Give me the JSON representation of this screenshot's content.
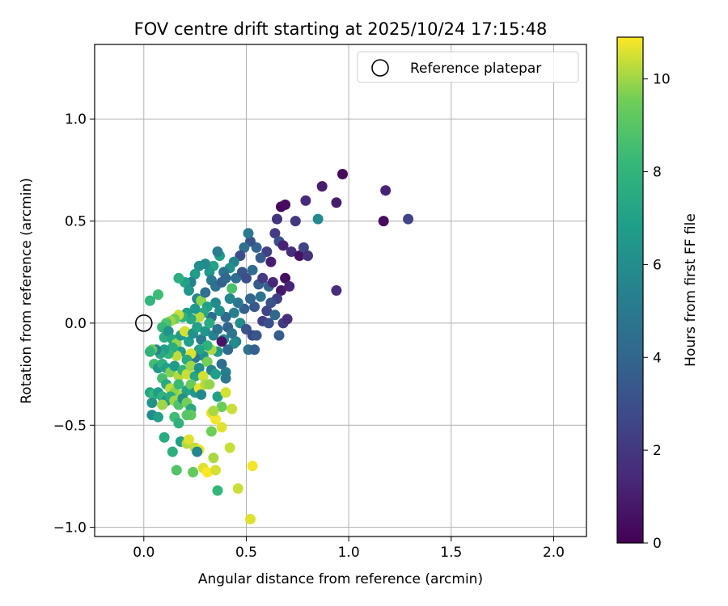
{
  "chart_data": {
    "type": "scatter",
    "title": "FOV centre drift starting at 2025/10/24 17:15:48",
    "xlabel": "Angular distance from reference (arcmin)",
    "ylabel": "Rotation from reference (arcmin)",
    "xlim": [
      -0.24,
      2.16
    ],
    "ylim": [
      -1.045,
      1.365
    ],
    "xticks": [
      0.0,
      0.5,
      1.0,
      1.5,
      2.0
    ],
    "xtick_labels": [
      "0.0",
      "0.5",
      "1.0",
      "1.5",
      "2.0"
    ],
    "yticks": [
      -1.0,
      -0.5,
      0.0,
      0.5,
      1.0
    ],
    "ytick_labels": [
      "−1.0",
      "−0.5",
      "0.0",
      "0.5",
      "1.0"
    ],
    "grid": true,
    "legend": {
      "position": "top-right",
      "entries": [
        {
          "label": "Reference platepar",
          "marker": "open-circle",
          "color": "#000000"
        }
      ]
    },
    "reference_point": {
      "x": 0.0,
      "y": 0.0
    },
    "colorbar": {
      "label": "Hours from first FF file",
      "colormap": "viridis",
      "range": [
        0,
        10.9
      ],
      "ticks": [
        0,
        2,
        4,
        6,
        8,
        10
      ],
      "tick_labels": [
        "0",
        "2",
        "4",
        "6",
        "8",
        "10"
      ]
    },
    "points": [
      {
        "x": 0.97,
        "y": 0.73,
        "c": 0.3
      },
      {
        "x": 0.87,
        "y": 0.67,
        "c": 1.0
      },
      {
        "x": 1.18,
        "y": 0.65,
        "c": 1.2
      },
      {
        "x": 0.79,
        "y": 0.6,
        "c": 1.5
      },
      {
        "x": 0.94,
        "y": 0.59,
        "c": 1.0
      },
      {
        "x": 0.67,
        "y": 0.57,
        "c": 0.2
      },
      {
        "x": 0.69,
        "y": 0.58,
        "c": 0.4
      },
      {
        "x": 1.17,
        "y": 0.5,
        "c": 0.4
      },
      {
        "x": 1.29,
        "y": 0.51,
        "c": 2.5
      },
      {
        "x": 0.85,
        "y": 0.51,
        "c": 5.8
      },
      {
        "x": 0.74,
        "y": 0.5,
        "c": 2.0
      },
      {
        "x": 0.65,
        "y": 0.51,
        "c": 1.8
      },
      {
        "x": 0.64,
        "y": 0.44,
        "c": 2.2
      },
      {
        "x": 0.66,
        "y": 0.4,
        "c": 3.0
      },
      {
        "x": 0.68,
        "y": 0.38,
        "c": 1.2
      },
      {
        "x": 0.72,
        "y": 0.35,
        "c": 1.6
      },
      {
        "x": 0.76,
        "y": 0.33,
        "c": 0.6
      },
      {
        "x": 0.78,
        "y": 0.37,
        "c": 2.6
      },
      {
        "x": 0.8,
        "y": 0.33,
        "c": 1.8
      },
      {
        "x": 0.62,
        "y": 0.3,
        "c": 1.0
      },
      {
        "x": 0.6,
        "y": 0.35,
        "c": 2.4
      },
      {
        "x": 0.57,
        "y": 0.32,
        "c": 3.5
      },
      {
        "x": 0.55,
        "y": 0.37,
        "c": 4.0
      },
      {
        "x": 0.52,
        "y": 0.4,
        "c": 3.2
      },
      {
        "x": 0.51,
        "y": 0.44,
        "c": 5.0
      },
      {
        "x": 0.49,
        "y": 0.37,
        "c": 4.5
      },
      {
        "x": 0.47,
        "y": 0.33,
        "c": 2.8
      },
      {
        "x": 0.44,
        "y": 0.3,
        "c": 5.5
      },
      {
        "x": 0.42,
        "y": 0.27,
        "c": 6.2
      },
      {
        "x": 0.39,
        "y": 0.25,
        "c": 4.8
      },
      {
        "x": 0.37,
        "y": 0.33,
        "c": 6.8
      },
      {
        "x": 0.36,
        "y": 0.35,
        "c": 5.2
      },
      {
        "x": 0.34,
        "y": 0.28,
        "c": 7.1
      },
      {
        "x": 0.32,
        "y": 0.25,
        "c": 6.5
      },
      {
        "x": 0.3,
        "y": 0.29,
        "c": 5.9
      },
      {
        "x": 0.27,
        "y": 0.28,
        "c": 6.0
      },
      {
        "x": 0.25,
        "y": 0.24,
        "c": 6.7
      },
      {
        "x": 0.23,
        "y": 0.2,
        "c": 5.4
      },
      {
        "x": 0.2,
        "y": 0.2,
        "c": 7.0
      },
      {
        "x": 0.17,
        "y": 0.22,
        "c": 7.7
      },
      {
        "x": 0.22,
        "y": 0.16,
        "c": 6.4
      },
      {
        "x": 0.26,
        "y": 0.12,
        "c": 5.7
      },
      {
        "x": 0.28,
        "y": 0.11,
        "c": 9.8
      },
      {
        "x": 0.3,
        "y": 0.15,
        "c": 4.5
      },
      {
        "x": 0.33,
        "y": 0.21,
        "c": 5.0
      },
      {
        "x": 0.35,
        "y": 0.18,
        "c": 4.6
      },
      {
        "x": 0.38,
        "y": 0.2,
        "c": 3.7
      },
      {
        "x": 0.4,
        "y": 0.22,
        "c": 4.1
      },
      {
        "x": 0.43,
        "y": 0.17,
        "c": 8.7
      },
      {
        "x": 0.45,
        "y": 0.22,
        "c": 4.4
      },
      {
        "x": 0.48,
        "y": 0.25,
        "c": 3.3
      },
      {
        "x": 0.5,
        "y": 0.22,
        "c": 2.9
      },
      {
        "x": 0.53,
        "y": 0.26,
        "c": 4.3
      },
      {
        "x": 0.56,
        "y": 0.19,
        "c": 3.6
      },
      {
        "x": 0.58,
        "y": 0.22,
        "c": 2.1
      },
      {
        "x": 0.61,
        "y": 0.18,
        "c": 3.9
      },
      {
        "x": 0.63,
        "y": 0.2,
        "c": 1.4
      },
      {
        "x": 0.67,
        "y": 0.16,
        "c": 0.8
      },
      {
        "x": 0.69,
        "y": 0.22,
        "c": 0.5
      },
      {
        "x": 0.71,
        "y": 0.18,
        "c": 1.3
      },
      {
        "x": 0.94,
        "y": 0.16,
        "c": 1.7
      },
      {
        "x": 0.65,
        "y": 0.12,
        "c": 2.3
      },
      {
        "x": 0.62,
        "y": 0.1,
        "c": 3.1
      },
      {
        "x": 0.6,
        "y": 0.06,
        "c": 2.6
      },
      {
        "x": 0.57,
        "y": 0.13,
        "c": 4.7
      },
      {
        "x": 0.54,
        "y": 0.08,
        "c": 3.4
      },
      {
        "x": 0.52,
        "y": 0.12,
        "c": 4.0
      },
      {
        "x": 0.49,
        "y": 0.07,
        "c": 3.8
      },
      {
        "x": 0.46,
        "y": 0.1,
        "c": 4.9
      },
      {
        "x": 0.44,
        "y": 0.05,
        "c": 5.3
      },
      {
        "x": 0.42,
        "y": 0.12,
        "c": 5.6
      },
      {
        "x": 0.4,
        "y": 0.03,
        "c": 4.2
      },
      {
        "x": 0.37,
        "y": 0.06,
        "c": 6.1
      },
      {
        "x": 0.35,
        "y": 0.1,
        "c": 5.8
      },
      {
        "x": 0.33,
        "y": 0.03,
        "c": 4.4
      },
      {
        "x": 0.31,
        "y": 0.08,
        "c": 6.9
      },
      {
        "x": 0.29,
        "y": 0.05,
        "c": 7.3
      },
      {
        "x": 0.27,
        "y": 0.03,
        "c": 10.2
      },
      {
        "x": 0.25,
        "y": 0.07,
        "c": 6.6
      },
      {
        "x": 0.23,
        "y": 0.02,
        "c": 7.4
      },
      {
        "x": 0.21,
        "y": 0.05,
        "c": 6.8
      },
      {
        "x": 0.19,
        "y": 0.03,
        "c": 7.9
      },
      {
        "x": 0.17,
        "y": 0.04,
        "c": 10.4
      },
      {
        "x": 0.15,
        "y": 0.02,
        "c": 9.5
      },
      {
        "x": 0.13,
        "y": 0.01,
        "c": 10.0
      },
      {
        "x": 0.11,
        "y": 0.0,
        "c": 8.8
      },
      {
        "x": 0.09,
        "y": -0.02,
        "c": 8.2
      },
      {
        "x": 0.07,
        "y": 0.14,
        "c": 8.4
      },
      {
        "x": 0.03,
        "y": 0.11,
        "c": 8.0
      },
      {
        "x": 0.1,
        "y": -0.07,
        "c": 7.6
      },
      {
        "x": 0.12,
        "y": -0.04,
        "c": 6.3
      },
      {
        "x": 0.14,
        "y": -0.08,
        "c": 7.2
      },
      {
        "x": 0.16,
        "y": -0.1,
        "c": 9.9
      },
      {
        "x": 0.18,
        "y": -0.06,
        "c": 6.6
      },
      {
        "x": 0.2,
        "y": -0.04,
        "c": 10.5
      },
      {
        "x": 0.22,
        "y": -0.09,
        "c": 6.9
      },
      {
        "x": 0.24,
        "y": -0.05,
        "c": 6.2
      },
      {
        "x": 0.26,
        "y": -0.02,
        "c": 7.0
      },
      {
        "x": 0.28,
        "y": -0.08,
        "c": 5.1
      },
      {
        "x": 0.3,
        "y": -0.04,
        "c": 6.4
      },
      {
        "x": 0.32,
        "y": 0.0,
        "c": 7.5
      },
      {
        "x": 0.34,
        "y": -0.06,
        "c": 5.5
      },
      {
        "x": 0.36,
        "y": -0.03,
        "c": 4.6
      },
      {
        "x": 0.39,
        "y": -0.08,
        "c": 5.7
      },
      {
        "x": 0.41,
        "y": -0.02,
        "c": 3.9
      },
      {
        "x": 0.43,
        "y": -0.05,
        "c": 4.8
      },
      {
        "x": 0.45,
        "y": -0.09,
        "c": 5.2
      },
      {
        "x": 0.47,
        "y": 0.0,
        "c": 6.0
      },
      {
        "x": 0.5,
        "y": -0.03,
        "c": 3.2
      },
      {
        "x": 0.53,
        "y": -0.06,
        "c": 2.7
      },
      {
        "x": 0.55,
        "y": -0.06,
        "c": 3.4
      },
      {
        "x": 0.58,
        "y": 0.01,
        "c": 2.4
      },
      {
        "x": 0.61,
        "y": 0.0,
        "c": 3.0
      },
      {
        "x": 0.64,
        "y": 0.04,
        "c": 4.1
      },
      {
        "x": 0.66,
        "y": -0.06,
        "c": 3.6
      },
      {
        "x": 0.68,
        "y": 0.0,
        "c": 2.2
      },
      {
        "x": 0.7,
        "y": 0.02,
        "c": 1.7
      },
      {
        "x": 0.51,
        "y": -0.13,
        "c": 4.6
      },
      {
        "x": 0.54,
        "y": -0.13,
        "c": 3.8
      },
      {
        "x": 0.44,
        "y": -0.1,
        "c": 5.9
      },
      {
        "x": 0.41,
        "y": -0.13,
        "c": 4.2
      },
      {
        "x": 0.38,
        "y": -0.09,
        "c": 0.7
      },
      {
        "x": 0.36,
        "y": -0.14,
        "c": 6.5
      },
      {
        "x": 0.33,
        "y": -0.13,
        "c": 10.1
      },
      {
        "x": 0.31,
        "y": -0.11,
        "c": 7.8
      },
      {
        "x": 0.29,
        "y": -0.16,
        "c": 6.3
      },
      {
        "x": 0.27,
        "y": -0.13,
        "c": 7.1
      },
      {
        "x": 0.25,
        "y": -0.17,
        "c": 5.0
      },
      {
        "x": 0.23,
        "y": -0.15,
        "c": 10.6
      },
      {
        "x": 0.21,
        "y": -0.18,
        "c": 7.4
      },
      {
        "x": 0.18,
        "y": -0.14,
        "c": 6.8
      },
      {
        "x": 0.16,
        "y": -0.16,
        "c": 10.3
      },
      {
        "x": 0.14,
        "y": -0.12,
        "c": 7.5
      },
      {
        "x": 0.12,
        "y": -0.15,
        "c": 8.1
      },
      {
        "x": 0.1,
        "y": -0.13,
        "c": 6.9
      },
      {
        "x": 0.08,
        "y": -0.15,
        "c": 7.3
      },
      {
        "x": 0.06,
        "y": -0.13,
        "c": 5.6
      },
      {
        "x": 0.04,
        "y": -0.13,
        "c": 9.3
      },
      {
        "x": 0.03,
        "y": -0.14,
        "c": 7.9
      },
      {
        "x": 0.05,
        "y": -0.2,
        "c": 8.5
      },
      {
        "x": 0.07,
        "y": -0.22,
        "c": 6.4
      },
      {
        "x": 0.09,
        "y": -0.2,
        "c": 7.7
      },
      {
        "x": 0.11,
        "y": -0.22,
        "c": 7.0
      },
      {
        "x": 0.13,
        "y": -0.24,
        "c": 9.7
      },
      {
        "x": 0.15,
        "y": -0.21,
        "c": 6.6
      },
      {
        "x": 0.17,
        "y": -0.26,
        "c": 10.2
      },
      {
        "x": 0.19,
        "y": -0.23,
        "c": 8.0
      },
      {
        "x": 0.21,
        "y": -0.25,
        "c": 10.4
      },
      {
        "x": 0.23,
        "y": -0.21,
        "c": 10.0
      },
      {
        "x": 0.25,
        "y": -0.26,
        "c": 7.2
      },
      {
        "x": 0.27,
        "y": -0.22,
        "c": 6.1
      },
      {
        "x": 0.29,
        "y": -0.26,
        "c": 10.5
      },
      {
        "x": 0.31,
        "y": -0.19,
        "c": 9.6
      },
      {
        "x": 0.33,
        "y": -0.23,
        "c": 5.5
      },
      {
        "x": 0.35,
        "y": -0.25,
        "c": 6.9
      },
      {
        "x": 0.38,
        "y": -0.2,
        "c": 4.3
      },
      {
        "x": 0.4,
        "y": -0.24,
        "c": 5.3
      },
      {
        "x": 0.4,
        "y": -0.27,
        "c": 4.9
      },
      {
        "x": 0.09,
        "y": -0.27,
        "c": 8.6
      },
      {
        "x": 0.11,
        "y": -0.3,
        "c": 7.4
      },
      {
        "x": 0.13,
        "y": -0.32,
        "c": 10.3
      },
      {
        "x": 0.15,
        "y": -0.34,
        "c": 9.8
      },
      {
        "x": 0.17,
        "y": -0.3,
        "c": 8.3
      },
      {
        "x": 0.19,
        "y": -0.35,
        "c": 10.1
      },
      {
        "x": 0.21,
        "y": -0.33,
        "c": 7.1
      },
      {
        "x": 0.23,
        "y": -0.3,
        "c": 9.4
      },
      {
        "x": 0.25,
        "y": -0.34,
        "c": 6.6
      },
      {
        "x": 0.27,
        "y": -0.32,
        "c": 10.7
      },
      {
        "x": 0.3,
        "y": -0.3,
        "c": 10.2
      },
      {
        "x": 0.32,
        "y": -0.3,
        "c": 9.9
      },
      {
        "x": 0.28,
        "y": -0.35,
        "c": 5.8
      },
      {
        "x": 0.03,
        "y": -0.34,
        "c": 7.2
      },
      {
        "x": 0.05,
        "y": -0.35,
        "c": 8.2
      },
      {
        "x": 0.07,
        "y": -0.34,
        "c": 6.8
      },
      {
        "x": 0.09,
        "y": -0.36,
        "c": 7.9
      },
      {
        "x": 0.11,
        "y": -0.38,
        "c": 6.5
      },
      {
        "x": 0.13,
        "y": -0.36,
        "c": 7.6
      },
      {
        "x": 0.15,
        "y": -0.38,
        "c": 10.0
      },
      {
        "x": 0.17,
        "y": -0.4,
        "c": 8.8
      },
      {
        "x": 0.19,
        "y": -0.37,
        "c": 6.2
      },
      {
        "x": 0.21,
        "y": -0.39,
        "c": 9.6
      },
      {
        "x": 0.23,
        "y": -0.42,
        "c": 7.3
      },
      {
        "x": 0.23,
        "y": -0.45,
        "c": 9.2
      },
      {
        "x": 0.36,
        "y": -0.36,
        "c": 7.0
      },
      {
        "x": 0.38,
        "y": -0.41,
        "c": 9.4
      },
      {
        "x": 0.4,
        "y": -0.34,
        "c": 10.5
      },
      {
        "x": 0.43,
        "y": -0.42,
        "c": 10.4
      },
      {
        "x": 0.33,
        "y": -0.44,
        "c": 10.7
      },
      {
        "x": 0.35,
        "y": -0.47,
        "c": 10.8
      },
      {
        "x": 0.34,
        "y": -0.43,
        "c": 10.1
      },
      {
        "x": 0.38,
        "y": -0.51,
        "c": 10.6
      },
      {
        "x": 0.33,
        "y": -0.53,
        "c": 9.5
      },
      {
        "x": 0.04,
        "y": -0.39,
        "c": 6.3
      },
      {
        "x": 0.09,
        "y": -0.4,
        "c": 10.0
      },
      {
        "x": 0.04,
        "y": -0.45,
        "c": 5.9
      },
      {
        "x": 0.07,
        "y": -0.46,
        "c": 7.0
      },
      {
        "x": 0.15,
        "y": -0.46,
        "c": 8.4
      },
      {
        "x": 0.17,
        "y": -0.49,
        "c": 7.8
      },
      {
        "x": 0.21,
        "y": -0.45,
        "c": 9.0
      },
      {
        "x": 0.1,
        "y": -0.56,
        "c": 7.5
      },
      {
        "x": 0.18,
        "y": -0.58,
        "c": 6.9
      },
      {
        "x": 0.21,
        "y": -0.59,
        "c": 10.2
      },
      {
        "x": 0.22,
        "y": -0.57,
        "c": 10.6
      },
      {
        "x": 0.25,
        "y": -0.61,
        "c": 10.3
      },
      {
        "x": 0.27,
        "y": -0.62,
        "c": 10.7
      },
      {
        "x": 0.14,
        "y": -0.63,
        "c": 7.7
      },
      {
        "x": 0.26,
        "y": -0.63,
        "c": 5.6
      },
      {
        "x": 0.42,
        "y": -0.61,
        "c": 10.4
      },
      {
        "x": 0.34,
        "y": -0.66,
        "c": 10.1
      },
      {
        "x": 0.29,
        "y": -0.71,
        "c": 10.6
      },
      {
        "x": 0.31,
        "y": -0.73,
        "c": 10.9
      },
      {
        "x": 0.35,
        "y": -0.72,
        "c": 10.5
      },
      {
        "x": 0.24,
        "y": -0.73,
        "c": 9.3
      },
      {
        "x": 0.16,
        "y": -0.72,
        "c": 8.9
      },
      {
        "x": 0.53,
        "y": -0.7,
        "c": 10.8
      },
      {
        "x": 0.36,
        "y": -0.82,
        "c": 8.1
      },
      {
        "x": 0.46,
        "y": -0.81,
        "c": 10.4
      },
      {
        "x": 0.52,
        "y": -0.96,
        "c": 10.6
      }
    ]
  }
}
